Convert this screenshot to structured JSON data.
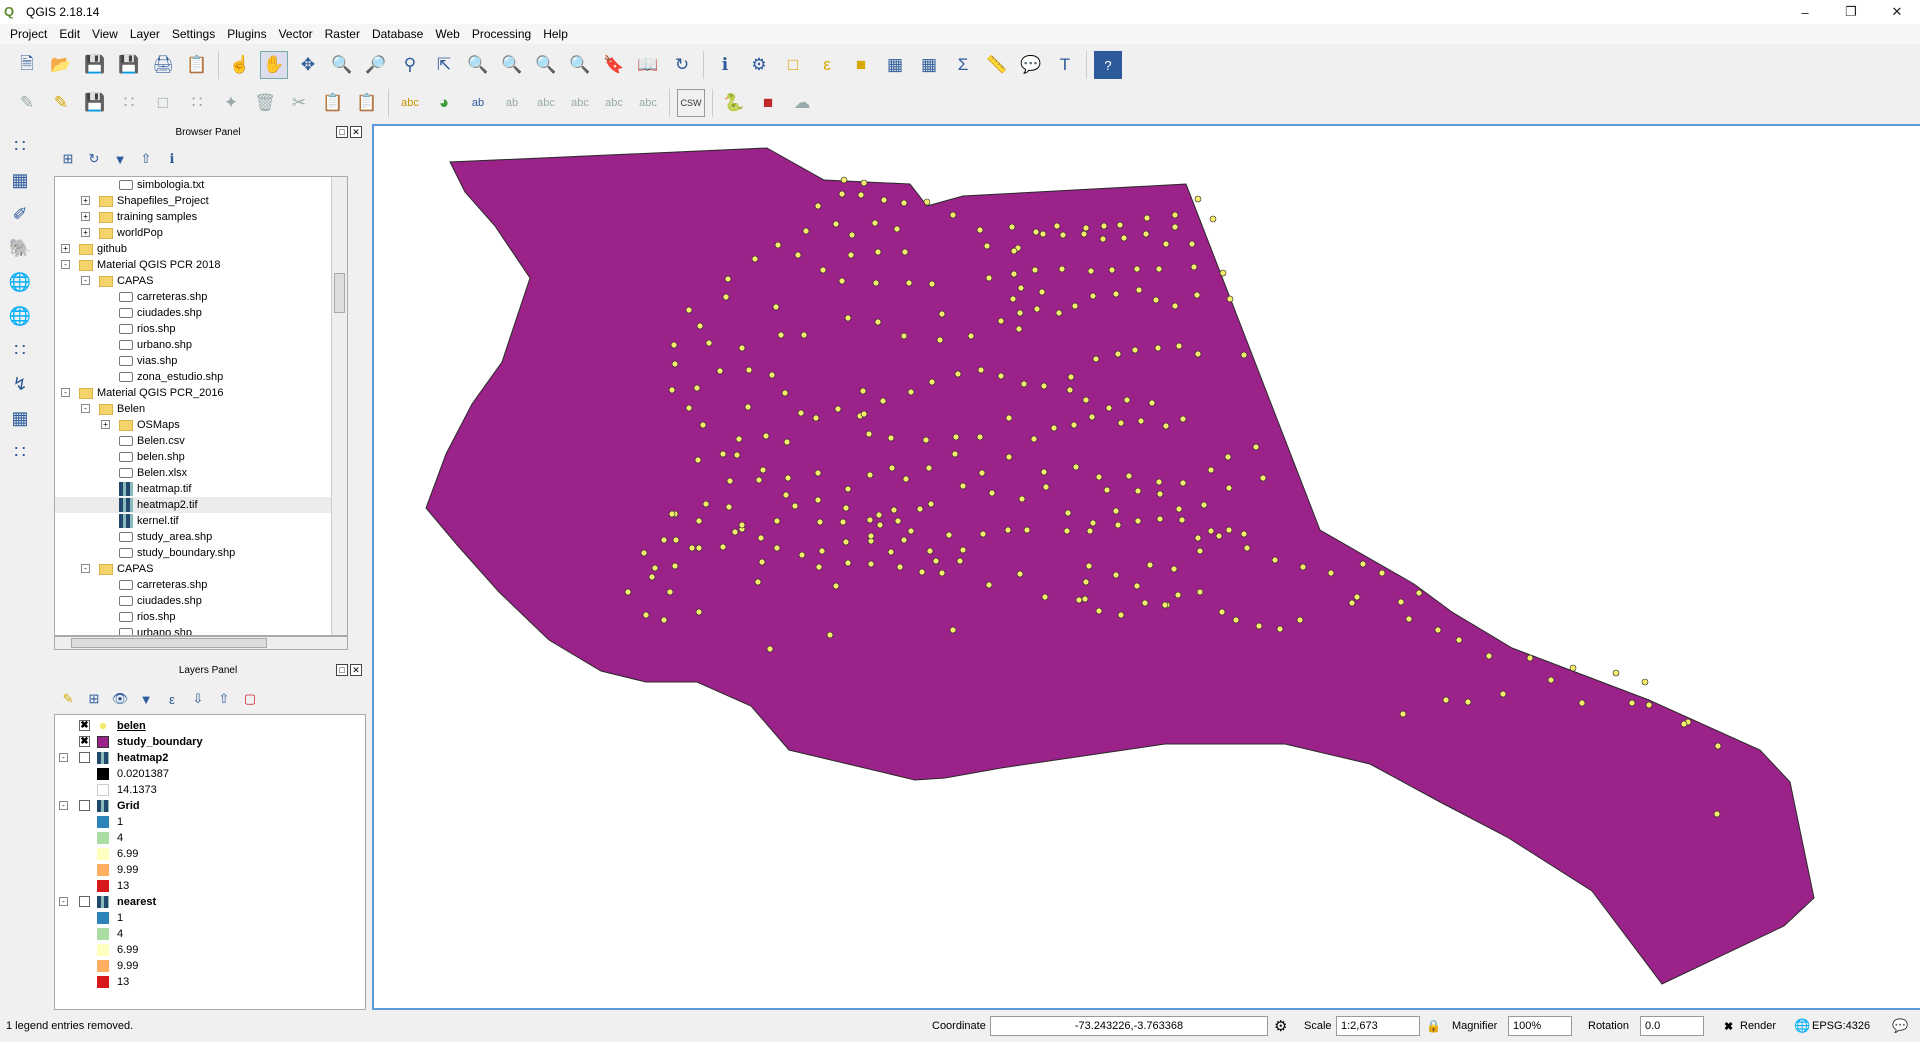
{
  "window": {
    "title": "QGIS 2.18.14"
  },
  "menu": [
    "Project",
    "Edit",
    "View",
    "Layer",
    "Settings",
    "Plugins",
    "Vector",
    "Raster",
    "Database",
    "Web",
    "Processing",
    "Help"
  ],
  "browser_panel": {
    "title": "Browser Panel",
    "items": [
      {
        "label": "simbologia.txt",
        "indent": 4,
        "icon": "file",
        "exp": ""
      },
      {
        "label": "Shapefiles_Project",
        "indent": 3,
        "icon": "folder",
        "exp": "+"
      },
      {
        "label": "training samples",
        "indent": 3,
        "icon": "folder",
        "exp": "+"
      },
      {
        "label": "worldPop",
        "indent": 3,
        "icon": "folder",
        "exp": "+"
      },
      {
        "label": "github",
        "indent": 2,
        "icon": "folder",
        "exp": "+"
      },
      {
        "label": "Material QGIS PCR 2018",
        "indent": 2,
        "icon": "folder",
        "exp": "-"
      },
      {
        "label": "CAPAS",
        "indent": 3,
        "icon": "folder",
        "exp": "-"
      },
      {
        "label": "carreteras.shp",
        "indent": 4,
        "icon": "file",
        "exp": ""
      },
      {
        "label": "ciudades.shp",
        "indent": 4,
        "icon": "file",
        "exp": ""
      },
      {
        "label": "rios.shp",
        "indent": 4,
        "icon": "file",
        "exp": ""
      },
      {
        "label": "urbano.shp",
        "indent": 4,
        "icon": "file",
        "exp": ""
      },
      {
        "label": "vias.shp",
        "indent": 4,
        "icon": "file",
        "exp": ""
      },
      {
        "label": "zona_estudio.shp",
        "indent": 4,
        "icon": "file",
        "exp": ""
      },
      {
        "label": "Material QGIS PCR_2016",
        "indent": 2,
        "icon": "folder",
        "exp": "-"
      },
      {
        "label": "Belen",
        "indent": 3,
        "icon": "folder",
        "exp": "-"
      },
      {
        "label": "OSMaps",
        "indent": 4,
        "icon": "folder",
        "exp": "+"
      },
      {
        "label": "Belen.csv",
        "indent": 4,
        "icon": "file",
        "exp": ""
      },
      {
        "label": "belen.shp",
        "indent": 4,
        "icon": "file",
        "exp": ""
      },
      {
        "label": "Belen.xlsx",
        "indent": 4,
        "icon": "file",
        "exp": ""
      },
      {
        "label": "heatmap.tif",
        "indent": 4,
        "icon": "raster",
        "exp": ""
      },
      {
        "label": "heatmap2.tif",
        "indent": 4,
        "icon": "raster",
        "exp": "",
        "selected": true
      },
      {
        "label": "kernel.tif",
        "indent": 4,
        "icon": "raster",
        "exp": ""
      },
      {
        "label": "study_area.shp",
        "indent": 4,
        "icon": "file",
        "exp": ""
      },
      {
        "label": "study_boundary.shp",
        "indent": 4,
        "icon": "file",
        "exp": ""
      },
      {
        "label": "CAPAS",
        "indent": 3,
        "icon": "folder",
        "exp": "-"
      },
      {
        "label": "carreteras.shp",
        "indent": 4,
        "icon": "file",
        "exp": ""
      },
      {
        "label": "ciudades.shp",
        "indent": 4,
        "icon": "file",
        "exp": ""
      },
      {
        "label": "rios.shp",
        "indent": 4,
        "icon": "file",
        "exp": ""
      },
      {
        "label": "urbano.shp",
        "indent": 4,
        "icon": "file",
        "exp": ""
      }
    ]
  },
  "layers_panel": {
    "title": "Layers Panel",
    "rows": [
      {
        "kind": "layer",
        "label": "belen",
        "checked": true,
        "underline": true,
        "sym": "point",
        "exp": ""
      },
      {
        "kind": "layer",
        "label": "study_boundary",
        "checked": true,
        "sym": "#9b2288",
        "exp": ""
      },
      {
        "kind": "layer",
        "label": "heatmap2",
        "checked": false,
        "sym": "raster",
        "exp": "-"
      },
      {
        "kind": "legend",
        "label": "0.0201387",
        "color": "#000000"
      },
      {
        "kind": "legend",
        "label": "14.1373",
        "color": "#ffffff"
      },
      {
        "kind": "layer",
        "label": "Grid",
        "checked": false,
        "sym": "raster",
        "exp": "-"
      },
      {
        "kind": "legend",
        "label": "1",
        "color": "#2b83ba"
      },
      {
        "kind": "legend",
        "label": "4",
        "color": "#abdda4"
      },
      {
        "kind": "legend",
        "label": "6.99",
        "color": "#ffffbf"
      },
      {
        "kind": "legend",
        "label": "9.99",
        "color": "#fdae61"
      },
      {
        "kind": "legend",
        "label": "13",
        "color": "#d7191c"
      },
      {
        "kind": "layer",
        "label": "nearest",
        "checked": false,
        "sym": "raster",
        "exp": "-"
      },
      {
        "kind": "legend",
        "label": "1",
        "color": "#2b83ba"
      },
      {
        "kind": "legend",
        "label": "4",
        "color": "#abdda4"
      },
      {
        "kind": "legend",
        "label": "6.99",
        "color": "#ffffbf"
      },
      {
        "kind": "legend",
        "label": "9.99",
        "color": "#fdae61"
      },
      {
        "kind": "legend",
        "label": "13",
        "color": "#d7191c"
      }
    ]
  },
  "map": {
    "polygon_fill": "#9b2288",
    "point_fill": "#f5ea6e"
  },
  "status": {
    "message": "1 legend entries removed.",
    "coordinate_label": "Coordinate",
    "coordinate": "-73.243226,-3.763368",
    "scale_label": "Scale",
    "scale": "1:2,673",
    "magnifier_label": "Magnifier",
    "magnifier": "100%",
    "rotation_label": "Rotation",
    "rotation": "0.0",
    "render_label": "Render",
    "crs": "EPSG:4326"
  }
}
